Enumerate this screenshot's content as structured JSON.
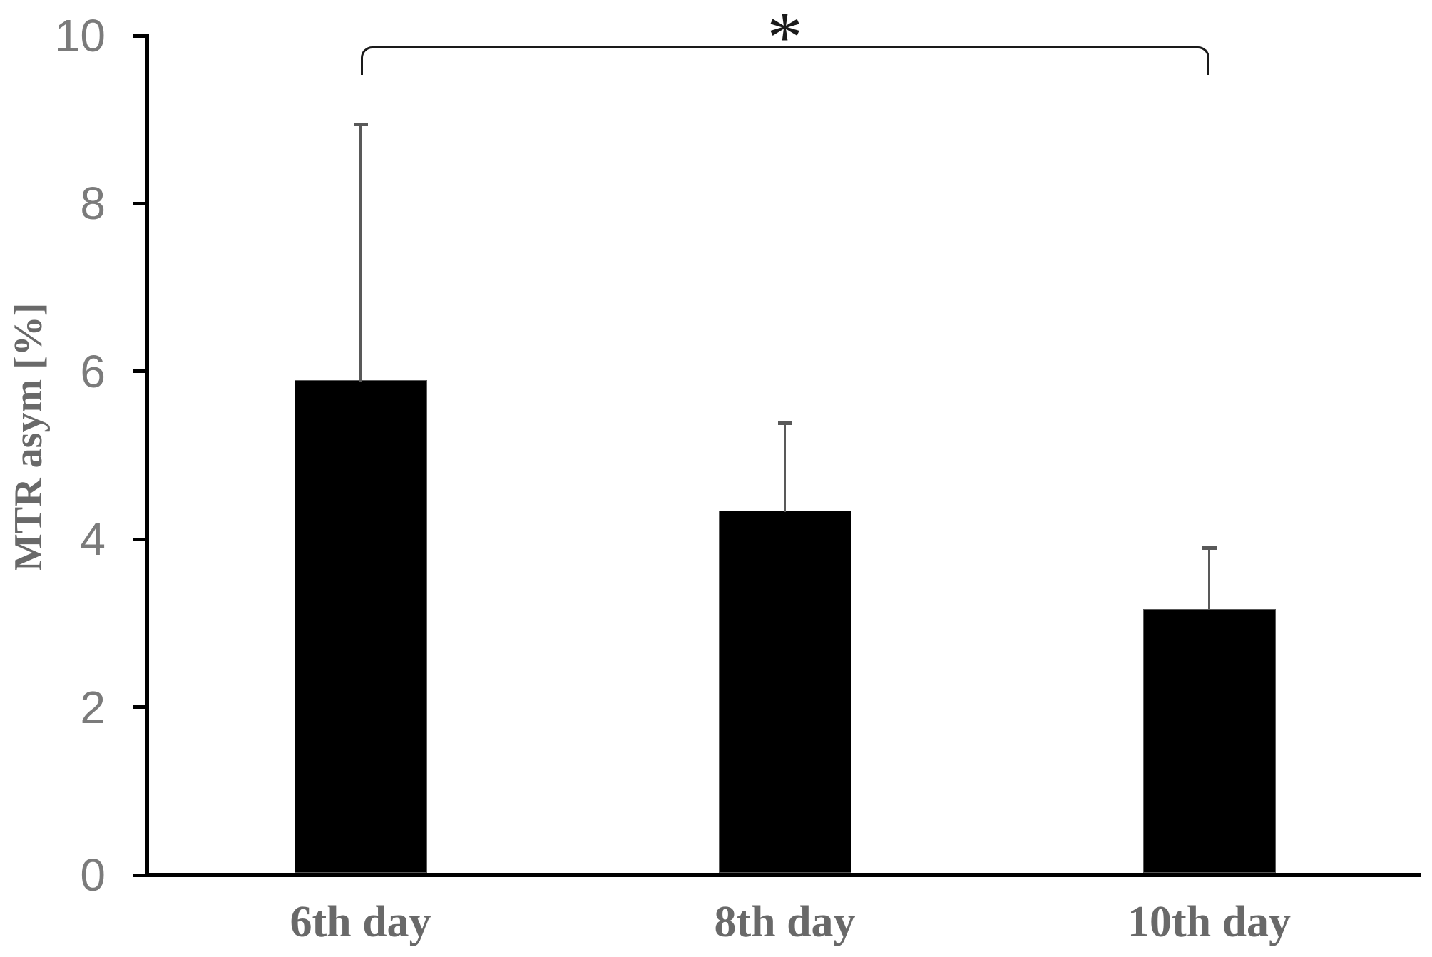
{
  "chart_data": {
    "type": "bar",
    "title": "",
    "categories": [
      "6th day",
      "8th day",
      "10th day"
    ],
    "values": [
      5.9,
      4.34,
      3.17
    ],
    "errors_plus": [
      3.05,
      1.05,
      0.73
    ],
    "xlabel": "",
    "ylabel": "MTR asym [%]",
    "ylim": [
      0,
      10
    ],
    "yticks": [
      0,
      2,
      4,
      6,
      8,
      10
    ],
    "ytick_labels": [
      "0",
      "2",
      "4",
      "6",
      "8",
      "10"
    ],
    "grid": false,
    "legend": "none",
    "significance": {
      "from": "6th day",
      "to": "10th day",
      "label": "*"
    },
    "colors": {
      "bar_fill": "#000000",
      "bar_border": "#595959",
      "error_bar": "#595959",
      "axis": "#000000",
      "tick_label": "#7b7b7b",
      "axis_label": "#696969",
      "significance": "#1a1a1a",
      "background": "#ffffff"
    }
  }
}
